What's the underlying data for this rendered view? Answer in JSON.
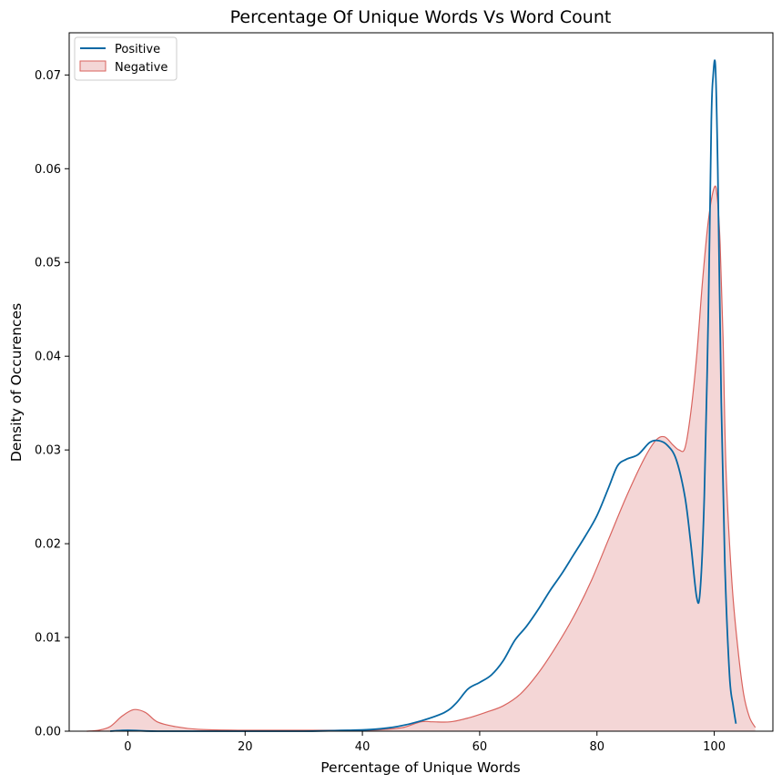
{
  "chart_data": {
    "type": "area",
    "title": "Percentage Of Unique Words Vs Word Count",
    "xlabel": "Percentage of Unique Words",
    "ylabel": "Density of Occurences",
    "xlim": [
      -10,
      110
    ],
    "ylim": [
      0,
      0.0745
    ],
    "xticks": [
      0,
      20,
      40,
      60,
      80,
      100
    ],
    "yticks": [
      0.0,
      0.01,
      0.02,
      0.03,
      0.04,
      0.05,
      0.06,
      0.07
    ],
    "ytick_labels": [
      "0.00",
      "0.01",
      "0.02",
      "0.03",
      "0.04",
      "0.05",
      "0.06",
      "0.07"
    ],
    "grid": false,
    "legend_position": "top-left",
    "series": [
      {
        "name": "Positive",
        "style": "line",
        "color": "#0868a4",
        "points": [
          [
            -3,
            0.0
          ],
          [
            0,
            0.0001
          ],
          [
            5,
            0.0
          ],
          [
            20,
            0.0
          ],
          [
            30,
            0.0
          ],
          [
            38,
            0.0001
          ],
          [
            42,
            0.0002
          ],
          [
            46,
            0.0005
          ],
          [
            50,
            0.0011
          ],
          [
            54,
            0.002
          ],
          [
            56,
            0.003
          ],
          [
            58,
            0.0045
          ],
          [
            60,
            0.0052
          ],
          [
            62,
            0.006
          ],
          [
            64,
            0.0075
          ],
          [
            66,
            0.0097
          ],
          [
            68,
            0.0112
          ],
          [
            70,
            0.013
          ],
          [
            72,
            0.015
          ],
          [
            74,
            0.0168
          ],
          [
            76,
            0.0188
          ],
          [
            78,
            0.0208
          ],
          [
            80,
            0.023
          ],
          [
            82,
            0.026
          ],
          [
            83.5,
            0.0283
          ],
          [
            85,
            0.029
          ],
          [
            87,
            0.0295
          ],
          [
            89,
            0.0308
          ],
          [
            90.5,
            0.031
          ],
          [
            92,
            0.0305
          ],
          [
            93.5,
            0.029
          ],
          [
            95,
            0.025
          ],
          [
            96,
            0.02
          ],
          [
            97,
            0.0143
          ],
          [
            97.6,
            0.015
          ],
          [
            98.3,
            0.025
          ],
          [
            99,
            0.045
          ],
          [
            99.5,
            0.065
          ],
          [
            99.8,
            0.0698
          ],
          [
            100.2,
            0.0709
          ],
          [
            100.6,
            0.06
          ],
          [
            101.2,
            0.035
          ],
          [
            101.8,
            0.018
          ],
          [
            102.6,
            0.006
          ],
          [
            103.2,
            0.0028
          ],
          [
            103.7,
            0.0008
          ]
        ]
      },
      {
        "name": "Negative",
        "style": "filled",
        "color": "#d9635e",
        "fill": "#f4d6d6",
        "points": [
          [
            -7,
            0.0
          ],
          [
            -5,
            0.0001
          ],
          [
            -3,
            0.0005
          ],
          [
            -1,
            0.0016
          ],
          [
            1,
            0.0023
          ],
          [
            3,
            0.002
          ],
          [
            5,
            0.001
          ],
          [
            8,
            0.0005
          ],
          [
            12,
            0.0002
          ],
          [
            20,
            0.0001
          ],
          [
            30,
            0.0001
          ],
          [
            40,
            0.0001
          ],
          [
            44,
            0.0002
          ],
          [
            47,
            0.0004
          ],
          [
            50,
            0.001
          ],
          [
            52,
            0.001
          ],
          [
            55,
            0.001
          ],
          [
            58,
            0.0014
          ],
          [
            61,
            0.002
          ],
          [
            64,
            0.0027
          ],
          [
            67,
            0.004
          ],
          [
            70,
            0.0062
          ],
          [
            73,
            0.009
          ],
          [
            76,
            0.0122
          ],
          [
            79,
            0.016
          ],
          [
            82,
            0.0205
          ],
          [
            85,
            0.025
          ],
          [
            88,
            0.029
          ],
          [
            90,
            0.031
          ],
          [
            91.5,
            0.0314
          ],
          [
            93,
            0.0305
          ],
          [
            94,
            0.03
          ],
          [
            95,
            0.0302
          ],
          [
            96,
            0.034
          ],
          [
            97,
            0.04
          ],
          [
            98,
            0.048
          ],
          [
            99,
            0.0545
          ],
          [
            100,
            0.058
          ],
          [
            100.5,
            0.057
          ],
          [
            101,
            0.052
          ],
          [
            101.5,
            0.042
          ],
          [
            102,
            0.028
          ],
          [
            103,
            0.016
          ],
          [
            104,
            0.009
          ],
          [
            105,
            0.004
          ],
          [
            106,
            0.0015
          ],
          [
            107,
            0.0004
          ]
        ]
      }
    ]
  }
}
